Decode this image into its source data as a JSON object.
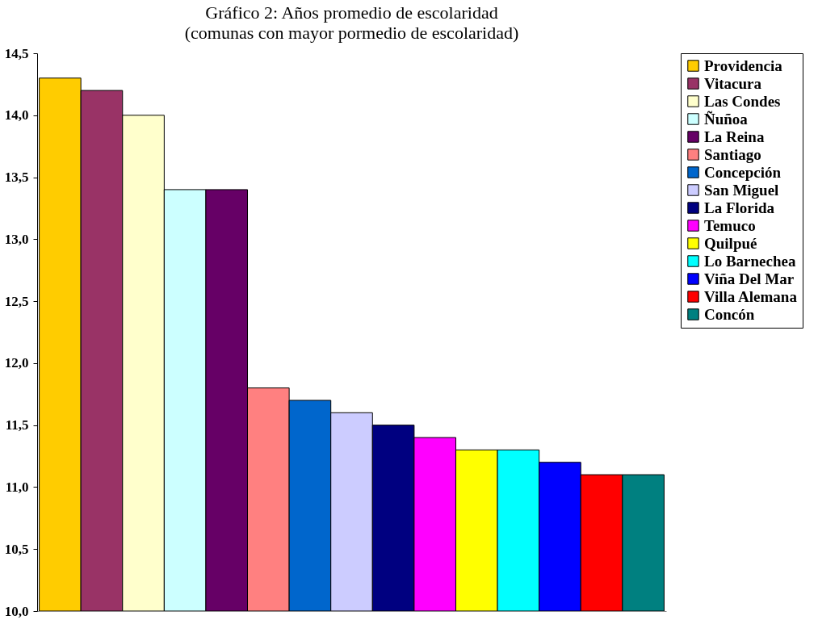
{
  "chart_data": {
    "type": "bar",
    "title": "Gráfico 2: Años promedio de escolaridad",
    "subtitle": "(comunas con mayor pormedio de escolaridad)",
    "categories": [
      null,
      null,
      null,
      null,
      null,
      null,
      null,
      null,
      null,
      null,
      null,
      null,
      null,
      null,
      null
    ],
    "series": [
      {
        "name": "Providencia",
        "color": "#ffcc00",
        "values": [
          14.3,
          null,
          null,
          null,
          null,
          null,
          null,
          null,
          null,
          null,
          null,
          null,
          null,
          null,
          null
        ]
      },
      {
        "name": "Vitacura",
        "color": "#993366",
        "values": [
          null,
          14.2,
          null,
          null,
          null,
          null,
          null,
          null,
          null,
          null,
          null,
          null,
          null,
          null,
          null
        ]
      },
      {
        "name": "Las Condes",
        "color": "#ffffcc",
        "values": [
          null,
          null,
          14.0,
          null,
          null,
          null,
          null,
          null,
          null,
          null,
          null,
          null,
          null,
          null,
          null
        ]
      },
      {
        "name": "Ñuñoa",
        "color": "#ccffff",
        "values": [
          null,
          null,
          null,
          13.4,
          null,
          null,
          null,
          null,
          null,
          null,
          null,
          null,
          null,
          null,
          null
        ]
      },
      {
        "name": "La Reina",
        "color": "#660066",
        "values": [
          null,
          null,
          null,
          null,
          13.4,
          null,
          null,
          null,
          null,
          null,
          null,
          null,
          null,
          null,
          null
        ]
      },
      {
        "name": "Santiago",
        "color": "#ff8080",
        "values": [
          null,
          null,
          null,
          null,
          null,
          11.8,
          null,
          null,
          null,
          null,
          null,
          null,
          null,
          null,
          null
        ]
      },
      {
        "name": "Concepción",
        "color": "#0066cc",
        "values": [
          null,
          null,
          null,
          null,
          null,
          null,
          11.7,
          null,
          null,
          null,
          null,
          null,
          null,
          null,
          null
        ]
      },
      {
        "name": "San Miguel",
        "color": "#ccccff",
        "values": [
          null,
          null,
          null,
          null,
          null,
          null,
          null,
          11.6,
          null,
          null,
          null,
          null,
          null,
          null,
          null
        ]
      },
      {
        "name": "La Florida",
        "color": "#000080",
        "values": [
          null,
          null,
          null,
          null,
          null,
          null,
          null,
          null,
          11.5,
          null,
          null,
          null,
          null,
          null,
          null
        ]
      },
      {
        "name": "Temuco",
        "color": "#ff00ff",
        "values": [
          null,
          null,
          null,
          null,
          null,
          null,
          null,
          null,
          null,
          11.4,
          null,
          null,
          null,
          null,
          null
        ]
      },
      {
        "name": "Quilpué",
        "color": "#ffff00",
        "values": [
          null,
          null,
          null,
          null,
          null,
          null,
          null,
          null,
          null,
          null,
          11.3,
          null,
          null,
          null,
          null
        ]
      },
      {
        "name": "Lo Barnechea",
        "color": "#00ffff",
        "values": [
          null,
          null,
          null,
          null,
          null,
          null,
          null,
          null,
          null,
          null,
          null,
          11.3,
          null,
          null,
          null
        ]
      },
      {
        "name": "Viña Del Mar",
        "color": "#0000ff",
        "values": [
          null,
          null,
          null,
          null,
          null,
          null,
          null,
          null,
          null,
          null,
          null,
          null,
          11.2,
          null,
          null
        ]
      },
      {
        "name": "Villa Alemana",
        "color": "#ff0000",
        "values": [
          null,
          null,
          null,
          null,
          null,
          null,
          null,
          null,
          null,
          null,
          null,
          null,
          null,
          11.1,
          null
        ]
      },
      {
        "name": "Concón",
        "color": "#008080",
        "values": [
          null,
          null,
          null,
          null,
          null,
          null,
          null,
          null,
          null,
          null,
          null,
          null,
          null,
          null,
          11.1
        ]
      }
    ],
    "ylim": [
      10.0,
      14.5
    ],
    "yticks": [
      {
        "value": 10.0,
        "label": "10,0"
      },
      {
        "value": 10.5,
        "label": "10,5"
      },
      {
        "value": 11.0,
        "label": "11,0"
      },
      {
        "value": 11.5,
        "label": "11,5"
      },
      {
        "value": 12.0,
        "label": "12,0"
      },
      {
        "value": 12.5,
        "label": "12,5"
      },
      {
        "value": 13.0,
        "label": "13,0"
      },
      {
        "value": 13.5,
        "label": "13,5"
      },
      {
        "value": 14.0,
        "label": "14,0"
      },
      {
        "value": 14.5,
        "label": "14,5"
      }
    ],
    "tick_labels": "y",
    "grid": false,
    "legend": "top right"
  }
}
